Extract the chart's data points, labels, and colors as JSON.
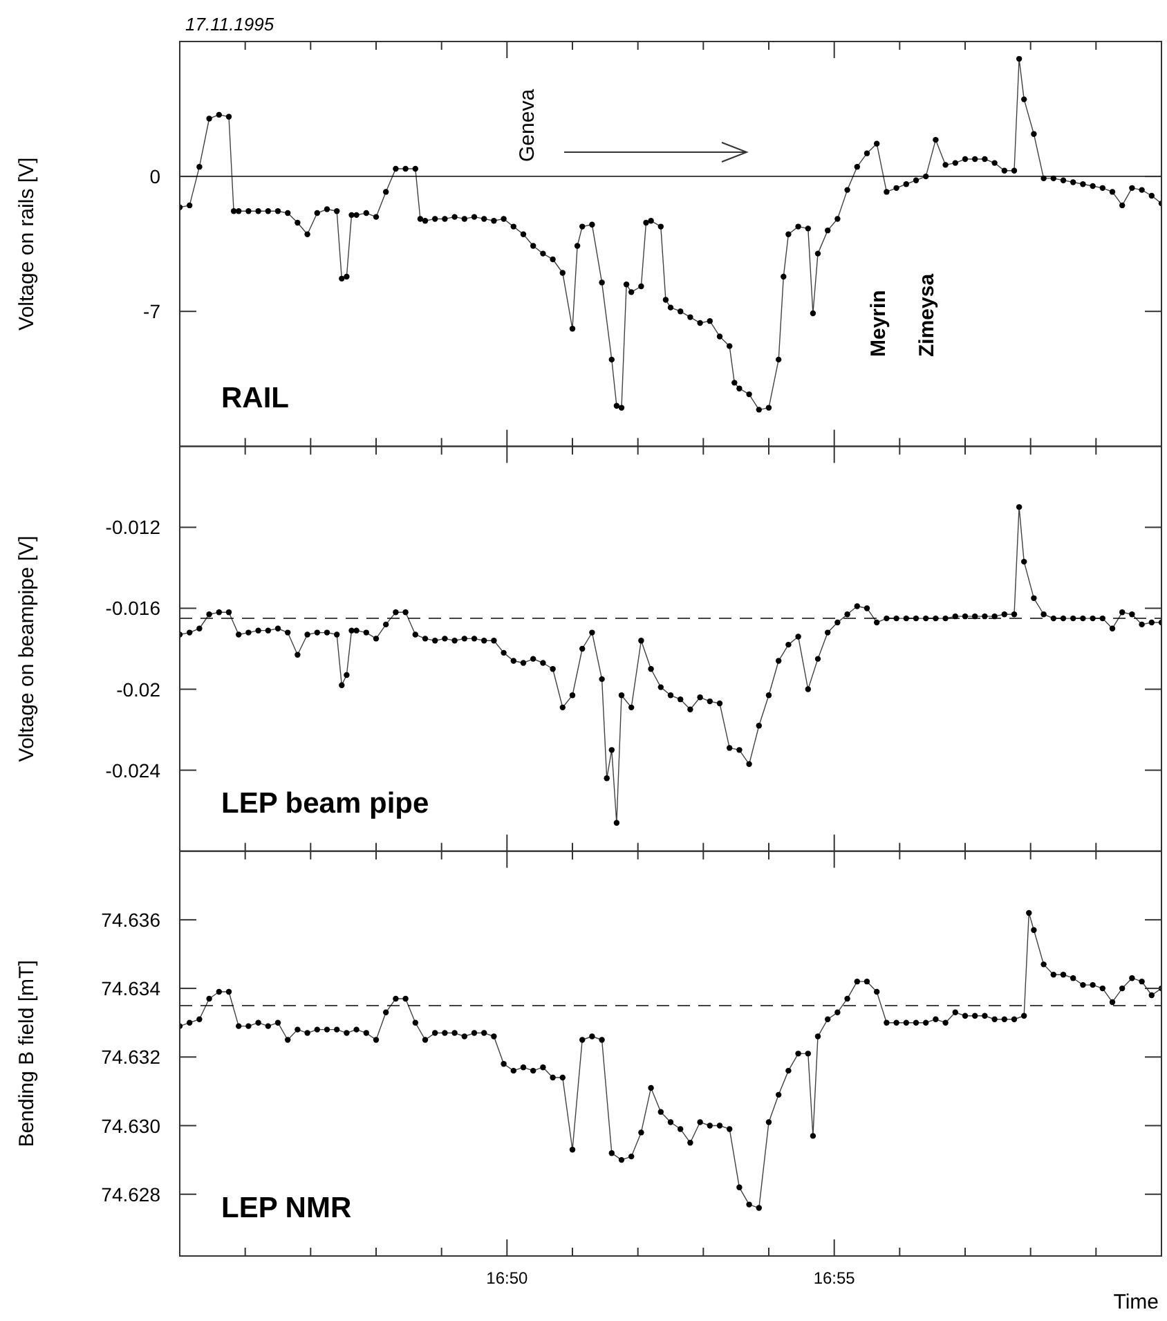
{
  "chart_data": [
    {
      "type": "line",
      "title": "17.11.1995",
      "ylabel": "Voltage on rails [V]",
      "xlim": [
        16.75,
        17.0
      ],
      "ylim": [
        -14,
        7
      ],
      "yticks": [
        0,
        -7
      ],
      "tick_labels": "y",
      "marker": "circle",
      "line_style": "solid",
      "xticks": [
        {
          "value": 16.76667,
          "label": null
        },
        {
          "value": 16.78333,
          "label": null
        },
        {
          "value": 16.8,
          "label": null
        },
        {
          "value": 16.81667,
          "label": null
        },
        {
          "value": 16.83333,
          "label": null
        },
        {
          "value": 16.85,
          "label": null
        },
        {
          "value": 16.86667,
          "label": null
        },
        {
          "value": 16.88333,
          "label": null
        },
        {
          "value": 16.9,
          "label": null
        },
        {
          "value": 16.91667,
          "label": null
        },
        {
          "value": 16.93333,
          "label": null
        },
        {
          "value": 16.95,
          "label": null
        },
        {
          "value": 16.96667,
          "label": null
        },
        {
          "value": 16.98333,
          "label": null
        }
      ],
      "ref_lines": [
        {
          "axis": "y",
          "value": 0,
          "line_style": "solid",
          "color": "#444444"
        }
      ],
      "annotations": [
        "RAIL",
        "Geneva",
        "Meyrin",
        "Zimeysa"
      ],
      "series": [
        {
          "color": "#000000",
          "x": [
            16.75,
            16.7525,
            16.755,
            16.7575,
            16.76,
            16.7625,
            16.76375,
            16.765,
            16.7675,
            16.77,
            16.7725,
            16.775,
            16.7775,
            16.78,
            16.7825,
            16.785,
            16.7875,
            16.79,
            16.79125,
            16.7925,
            16.79375,
            16.795,
            16.7975,
            16.8,
            16.8025,
            16.805,
            16.8075,
            16.81,
            16.81125,
            16.8125,
            16.815,
            16.8175,
            16.82,
            16.8225,
            16.825,
            16.8275,
            16.83,
            16.8325,
            16.835,
            16.8375,
            16.84,
            16.8425,
            16.845,
            16.8475,
            16.85,
            16.85125,
            16.8525,
            16.855,
            16.8575,
            16.86,
            16.86125,
            16.8625,
            16.86375,
            16.865,
            16.8675,
            16.86875,
            16.87,
            16.8725,
            16.87375,
            16.875,
            16.8775,
            16.88,
            16.8825,
            16.885,
            16.8875,
            16.89,
            16.89125,
            16.8925,
            16.895,
            16.8975,
            16.9,
            16.9025,
            16.90375,
            16.905,
            16.9075,
            16.91,
            16.91125,
            16.9125,
            16.915,
            16.9175,
            16.92,
            16.9225,
            16.925,
            16.9275,
            16.93,
            16.9325,
            16.935,
            16.9375,
            16.94,
            16.9425,
            16.945,
            16.9475,
            16.95,
            16.9525,
            16.955,
            16.9575,
            16.96,
            16.9625,
            16.96375,
            16.965,
            16.9675,
            16.97,
            16.9725,
            16.975,
            16.9775,
            16.98,
            16.9825,
            16.985,
            16.9875,
            16.99,
            16.9925,
            16.995,
            16.9975,
            17.0
          ],
          "values": [
            -1.6,
            -1.5,
            0.5,
            3.0,
            3.2,
            3.1,
            -1.8,
            -1.8,
            -1.8,
            -1.8,
            -1.8,
            -1.8,
            -1.9,
            -2.4,
            -3.0,
            -1.9,
            -1.7,
            -1.8,
            -5.3,
            -5.2,
            -2.0,
            -2.0,
            -1.9,
            -2.1,
            -0.8,
            0.4,
            0.4,
            0.4,
            -2.2,
            -2.3,
            -2.2,
            -2.2,
            -2.1,
            -2.2,
            -2.1,
            -2.2,
            -2.3,
            -2.2,
            -2.6,
            -3.0,
            -3.6,
            -4.0,
            -4.3,
            -5.0,
            -7.9,
            -3.6,
            -2.6,
            -2.5,
            -5.5,
            -9.5,
            -11.9,
            -12.0,
            -5.6,
            -6.0,
            -5.7,
            -2.4,
            -2.3,
            -2.6,
            -6.4,
            -6.8,
            -7.0,
            -7.3,
            -7.6,
            -7.5,
            -8.3,
            -8.8,
            -10.7,
            -11.0,
            -11.3,
            -12.1,
            -12.0,
            -9.5,
            -5.2,
            -3.0,
            -2.6,
            -2.7,
            -7.1,
            -4.0,
            -2.8,
            -2.2,
            -0.7,
            0.5,
            1.2,
            1.7,
            -0.8,
            -0.6,
            -0.4,
            -0.2,
            0.0,
            1.9,
            0.6,
            0.7,
            0.9,
            0.9,
            0.9,
            0.7,
            0.3,
            0.3,
            6.1,
            4.0,
            2.2,
            -0.1,
            -0.1,
            -0.2,
            -0.3,
            -0.4,
            -0.5,
            -0.6,
            -0.8,
            -1.5,
            -0.6,
            -0.7,
            -1.0,
            -1.4
          ]
        }
      ]
    },
    {
      "type": "line",
      "ylabel": "Voltage on beampipe [V]",
      "xlim": [
        16.75,
        17.0
      ],
      "ylim": [
        -0.028,
        -0.008
      ],
      "yticks": [
        -0.012,
        -0.016,
        -0.02,
        -0.024
      ],
      "tick_labels": "y",
      "marker": "circle",
      "line_style": "solid",
      "xticks": [
        {
          "value": 16.76667,
          "label": null
        },
        {
          "value": 16.78333,
          "label": null
        },
        {
          "value": 16.8,
          "label": null
        },
        {
          "value": 16.81667,
          "label": null
        },
        {
          "value": 16.83333,
          "label": null
        },
        {
          "value": 16.85,
          "label": null
        },
        {
          "value": 16.86667,
          "label": null
        },
        {
          "value": 16.88333,
          "label": null
        },
        {
          "value": 16.9,
          "label": null
        },
        {
          "value": 16.91667,
          "label": null
        },
        {
          "value": 16.93333,
          "label": null
        },
        {
          "value": 16.95,
          "label": null
        },
        {
          "value": 16.96667,
          "label": null
        },
        {
          "value": 16.98333,
          "label": null
        }
      ],
      "ref_lines": [
        {
          "axis": "y",
          "value": -0.0165,
          "line_style": "dashed",
          "color": "#444444"
        }
      ],
      "annotations": [
        "LEP beam pipe"
      ],
      "series": [
        {
          "color": "#000000",
          "x": [
            16.75,
            16.7525,
            16.755,
            16.7575,
            16.76,
            16.7625,
            16.765,
            16.7675,
            16.77,
            16.7725,
            16.775,
            16.7775,
            16.78,
            16.7825,
            16.785,
            16.7875,
            16.79,
            16.79125,
            16.7925,
            16.79375,
            16.795,
            16.7975,
            16.8,
            16.8025,
            16.805,
            16.8075,
            16.81,
            16.8125,
            16.815,
            16.8175,
            16.82,
            16.8225,
            16.825,
            16.8275,
            16.83,
            16.8325,
            16.835,
            16.8375,
            16.84,
            16.8425,
            16.845,
            16.8475,
            16.85,
            16.8525,
            16.855,
            16.8575,
            16.85875,
            16.86,
            16.86125,
            16.8625,
            16.865,
            16.8675,
            16.87,
            16.8725,
            16.875,
            16.8775,
            16.88,
            16.8825,
            16.885,
            16.8875,
            16.89,
            16.8925,
            16.895,
            16.8975,
            16.9,
            16.9025,
            16.905,
            16.9075,
            16.91,
            16.9125,
            16.915,
            16.9175,
            16.92,
            16.9225,
            16.925,
            16.9275,
            16.93,
            16.9325,
            16.935,
            16.9375,
            16.94,
            16.9425,
            16.945,
            16.9475,
            16.95,
            16.9525,
            16.955,
            16.9575,
            16.96,
            16.9625,
            16.96375,
            16.965,
            16.9675,
            16.97,
            16.9725,
            16.975,
            16.9775,
            16.98,
            16.9825,
            16.985,
            16.9875,
            16.99,
            16.9925,
            16.995,
            16.9975,
            17.0
          ],
          "values": [
            -0.0173,
            -0.0172,
            -0.017,
            -0.0163,
            -0.0162,
            -0.0162,
            -0.0173,
            -0.0172,
            -0.0171,
            -0.0171,
            -0.017,
            -0.0172,
            -0.0183,
            -0.0173,
            -0.0172,
            -0.0172,
            -0.0173,
            -0.0198,
            -0.0193,
            -0.0171,
            -0.0171,
            -0.0172,
            -0.0175,
            -0.0168,
            -0.0162,
            -0.0162,
            -0.0173,
            -0.0175,
            -0.0176,
            -0.0175,
            -0.0176,
            -0.0175,
            -0.0175,
            -0.0176,
            -0.0176,
            -0.0182,
            -0.0186,
            -0.0187,
            -0.0185,
            -0.0187,
            -0.019,
            -0.0209,
            -0.0203,
            -0.018,
            -0.0172,
            -0.0195,
            -0.0244,
            -0.023,
            -0.0266,
            -0.0203,
            -0.0209,
            -0.0176,
            -0.019,
            -0.0199,
            -0.0203,
            -0.0205,
            -0.021,
            -0.0204,
            -0.0206,
            -0.0207,
            -0.0229,
            -0.023,
            -0.0237,
            -0.0218,
            -0.0203,
            -0.0186,
            -0.0178,
            -0.0174,
            -0.02,
            -0.0185,
            -0.0172,
            -0.0167,
            -0.0163,
            -0.0159,
            -0.016,
            -0.0167,
            -0.0165,
            -0.0165,
            -0.0165,
            -0.0165,
            -0.0165,
            -0.0165,
            -0.0165,
            -0.0164,
            -0.0164,
            -0.0164,
            -0.0164,
            -0.0164,
            -0.0163,
            -0.0163,
            -0.011,
            -0.0137,
            -0.0155,
            -0.0163,
            -0.0165,
            -0.0165,
            -0.0165,
            -0.0165,
            -0.0165,
            -0.0165,
            -0.017,
            -0.0162,
            -0.0163,
            -0.0168,
            -0.0167,
            -0.0167
          ]
        }
      ]
    },
    {
      "type": "line",
      "ylabel": "Bending B field [mT]",
      "xlabel": "Time",
      "xlim": [
        16.75,
        17.0
      ],
      "ylim": [
        74.6262,
        74.638
      ],
      "yticks": [
        74.636,
        74.634,
        74.632,
        {
          "value": 74.63,
          "label": "74.630"
        },
        74.628
      ],
      "marker": "circle",
      "line_style": "solid",
      "xticks": [
        {
          "value": 16.76667,
          "label": null
        },
        {
          "value": 16.78333,
          "label": null
        },
        {
          "value": 16.8,
          "label": null
        },
        {
          "value": 16.81667,
          "label": null
        },
        {
          "value": 16.83333,
          "label": "16:50"
        },
        {
          "value": 16.85,
          "label": null
        },
        {
          "value": 16.86667,
          "label": null
        },
        {
          "value": 16.88333,
          "label": null
        },
        {
          "value": 16.9,
          "label": null
        },
        {
          "value": 16.91667,
          "label": "16:55"
        },
        {
          "value": 16.93333,
          "label": null
        },
        {
          "value": 16.95,
          "label": null
        },
        {
          "value": 16.96667,
          "label": null
        },
        {
          "value": 16.98333,
          "label": null
        }
      ],
      "ref_lines": [
        {
          "axis": "y",
          "value": 74.6335,
          "line_style": "dashed",
          "color": "#444444"
        }
      ],
      "annotations": [
        "LEP NMR"
      ],
      "series": [
        {
          "color": "#000000",
          "x": [
            16.75,
            16.7525,
            16.755,
            16.7575,
            16.76,
            16.7625,
            16.765,
            16.7675,
            16.77,
            16.7725,
            16.775,
            16.7775,
            16.78,
            16.7825,
            16.785,
            16.7875,
            16.79,
            16.7925,
            16.795,
            16.7975,
            16.8,
            16.8025,
            16.805,
            16.8075,
            16.81,
            16.8125,
            16.815,
            16.8175,
            16.82,
            16.8225,
            16.825,
            16.8275,
            16.83,
            16.8325,
            16.835,
            16.8375,
            16.84,
            16.8425,
            16.845,
            16.8475,
            16.85,
            16.8525,
            16.855,
            16.8575,
            16.86,
            16.8625,
            16.865,
            16.8675,
            16.87,
            16.8725,
            16.875,
            16.8775,
            16.88,
            16.8825,
            16.885,
            16.8875,
            16.89,
            16.8925,
            16.895,
            16.8975,
            16.9,
            16.9025,
            16.905,
            16.9075,
            16.91,
            16.91125,
            16.9125,
            16.915,
            16.9175,
            16.92,
            16.9225,
            16.925,
            16.9275,
            16.93,
            16.9325,
            16.935,
            16.9375,
            16.94,
            16.9425,
            16.945,
            16.9475,
            16.95,
            16.9525,
            16.955,
            16.9575,
            16.96,
            16.9625,
            16.965,
            16.96625,
            16.9675,
            16.97,
            16.9725,
            16.975,
            16.9775,
            16.98,
            16.9825,
            16.985,
            16.9875,
            16.99,
            16.9925,
            16.995,
            16.9975,
            17.0
          ],
          "values": [
            74.6329,
            74.633,
            74.6331,
            74.6337,
            74.6339,
            74.6339,
            74.6329,
            74.6329,
            74.633,
            74.6329,
            74.633,
            74.6325,
            74.6328,
            74.6327,
            74.6328,
            74.6328,
            74.6328,
            74.6327,
            74.6328,
            74.6327,
            74.6325,
            74.6333,
            74.6337,
            74.6337,
            74.633,
            74.6325,
            74.6327,
            74.6327,
            74.6327,
            74.6326,
            74.6327,
            74.6327,
            74.6326,
            74.6318,
            74.6316,
            74.6317,
            74.6316,
            74.6317,
            74.6314,
            74.6314,
            74.6293,
            74.6325,
            74.6326,
            74.6325,
            74.6292,
            74.629,
            74.6291,
            74.6298,
            74.6311,
            74.6304,
            74.6301,
            74.6299,
            74.6295,
            74.6301,
            74.63,
            74.63,
            74.6299,
            74.6282,
            74.6277,
            74.6276,
            74.6301,
            74.6309,
            74.6316,
            74.6321,
            74.6321,
            74.6297,
            74.6326,
            74.6331,
            74.6333,
            74.6337,
            74.6342,
            74.6342,
            74.6339,
            74.633,
            74.633,
            74.633,
            74.633,
            74.633,
            74.6331,
            74.633,
            74.6333,
            74.6332,
            74.6332,
            74.6332,
            74.6331,
            74.6331,
            74.6331,
            74.6332,
            74.6362,
            74.6357,
            74.6347,
            74.6344,
            74.6344,
            74.6343,
            74.6341,
            74.6341,
            74.634,
            74.6336,
            74.634,
            74.6343,
            74.6342,
            74.6338,
            74.634
          ]
        }
      ]
    }
  ]
}
